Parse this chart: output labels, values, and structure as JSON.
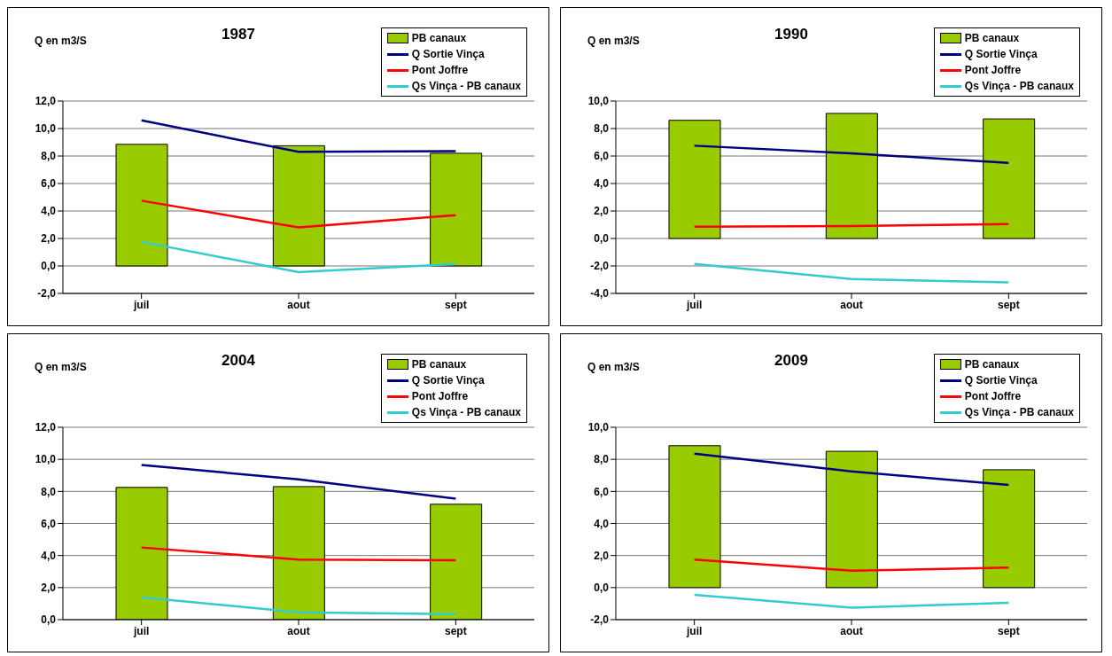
{
  "chart_data": [
    {
      "type": "bar",
      "title": "1987",
      "ylabel": "Q en m3/S",
      "categories": [
        "juil",
        "aout",
        "sept"
      ],
      "series": [
        {
          "name": "PB canaux",
          "color": "#99cc00",
          "values": [
            8.85,
            8.75,
            8.2
          ]
        },
        {
          "name": "Q Sortie Vinça",
          "type": "line",
          "color": "#000080",
          "values": [
            10.6,
            8.3,
            8.35
          ]
        },
        {
          "name": "Pont Joffre",
          "type": "line",
          "color": "#ff0000",
          "values": [
            4.75,
            2.8,
            3.7
          ]
        },
        {
          "name": "Qs Vinça - PB canaux",
          "type": "line",
          "color": "#33cccc",
          "values": [
            1.75,
            -0.45,
            0.15
          ]
        }
      ],
      "ylim": [
        -2,
        12
      ],
      "yticks": [
        {
          "value": -2,
          "label": "-2,0"
        },
        {
          "value": 0,
          "label": "0,0"
        },
        {
          "value": 2,
          "label": "2,0"
        },
        {
          "value": 4,
          "label": "4,0"
        },
        {
          "value": 6,
          "label": "6,0"
        },
        {
          "value": 8,
          "label": "8,0"
        },
        {
          "value": 10,
          "label": "10,0"
        },
        {
          "value": 12,
          "label": "12,0"
        }
      ],
      "grid": "y",
      "legend": "top right",
      "marker": "none"
    },
    {
      "type": "bar",
      "title": "1990",
      "ylabel": "Q en m3/S",
      "categories": [
        "juil",
        "aout",
        "sept"
      ],
      "series": [
        {
          "name": "PB canaux",
          "color": "#99cc00",
          "values": [
            8.6,
            9.1,
            8.7
          ]
        },
        {
          "name": "Q Sortie Vinça",
          "type": "line",
          "color": "#000080",
          "values": [
            6.75,
            6.2,
            5.5
          ]
        },
        {
          "name": "Pont Joffre",
          "type": "line",
          "color": "#ff0000",
          "values": [
            0.85,
            0.9,
            1.05
          ]
        },
        {
          "name": "Qs Vinça - PB canaux",
          "type": "line",
          "color": "#33cccc",
          "values": [
            -1.85,
            -2.95,
            -3.2
          ]
        }
      ],
      "ylim": [
        -4,
        10
      ],
      "yticks": [
        {
          "value": -4,
          "label": "-4,0"
        },
        {
          "value": -2,
          "label": "-2,0"
        },
        {
          "value": 0,
          "label": "0,0"
        },
        {
          "value": 2,
          "label": "2,0"
        },
        {
          "value": 4,
          "label": "4,0"
        },
        {
          "value": 6,
          "label": "6,0"
        },
        {
          "value": 8,
          "label": "8,0"
        },
        {
          "value": 10,
          "label": "10,0"
        }
      ],
      "grid": "y",
      "legend": "top right",
      "marker": "none"
    },
    {
      "type": "bar",
      "title": "2004",
      "ylabel": "Q en m3/S",
      "categories": [
        "juil",
        "aout",
        "sept"
      ],
      "series": [
        {
          "name": "PB canaux",
          "color": "#99cc00",
          "values": [
            8.25,
            8.3,
            7.2
          ]
        },
        {
          "name": "Q Sortie Vinça",
          "type": "line",
          "color": "#000080",
          "values": [
            9.65,
            8.75,
            7.55
          ]
        },
        {
          "name": "Pont Joffre",
          "type": "line",
          "color": "#ff0000",
          "values": [
            4.5,
            3.75,
            3.7
          ]
        },
        {
          "name": "Qs Vinça - PB canaux",
          "type": "line",
          "color": "#33cccc",
          "values": [
            1.4,
            0.45,
            0.35
          ]
        }
      ],
      "ylim": [
        0,
        12
      ],
      "yticks": [
        {
          "value": 0,
          "label": "0,0"
        },
        {
          "value": 2,
          "label": "2,0"
        },
        {
          "value": 4,
          "label": "4,0"
        },
        {
          "value": 6,
          "label": "6,0"
        },
        {
          "value": 8,
          "label": "8,0"
        },
        {
          "value": 10,
          "label": "10,0"
        },
        {
          "value": 12,
          "label": "12,0"
        }
      ],
      "grid": "y",
      "legend": "top right",
      "marker": "none"
    },
    {
      "type": "bar",
      "title": "2009",
      "ylabel": "Q en m3/S",
      "categories": [
        "juil",
        "aout",
        "sept"
      ],
      "series": [
        {
          "name": "PB canaux",
          "color": "#99cc00",
          "values": [
            8.85,
            8.5,
            7.35
          ]
        },
        {
          "name": "Q Sortie Vinça",
          "type": "line",
          "color": "#000080",
          "values": [
            8.35,
            7.25,
            6.4
          ]
        },
        {
          "name": "Pont Joffre",
          "type": "line",
          "color": "#ff0000",
          "values": [
            1.75,
            1.05,
            1.25
          ]
        },
        {
          "name": "Qs Vinça - PB canaux",
          "type": "line",
          "color": "#33cccc",
          "values": [
            -0.45,
            -1.25,
            -0.95
          ]
        }
      ],
      "ylim": [
        -2,
        10
      ],
      "yticks": [
        {
          "value": -2,
          "label": "-2,0"
        },
        {
          "value": 0,
          "label": "0,0"
        },
        {
          "value": 2,
          "label": "2,0"
        },
        {
          "value": 4,
          "label": "4,0"
        },
        {
          "value": 6,
          "label": "6,0"
        },
        {
          "value": 8,
          "label": "8,0"
        },
        {
          "value": 10,
          "label": "10,0"
        }
      ],
      "grid": "y",
      "legend": "top right",
      "marker": "none"
    }
  ]
}
